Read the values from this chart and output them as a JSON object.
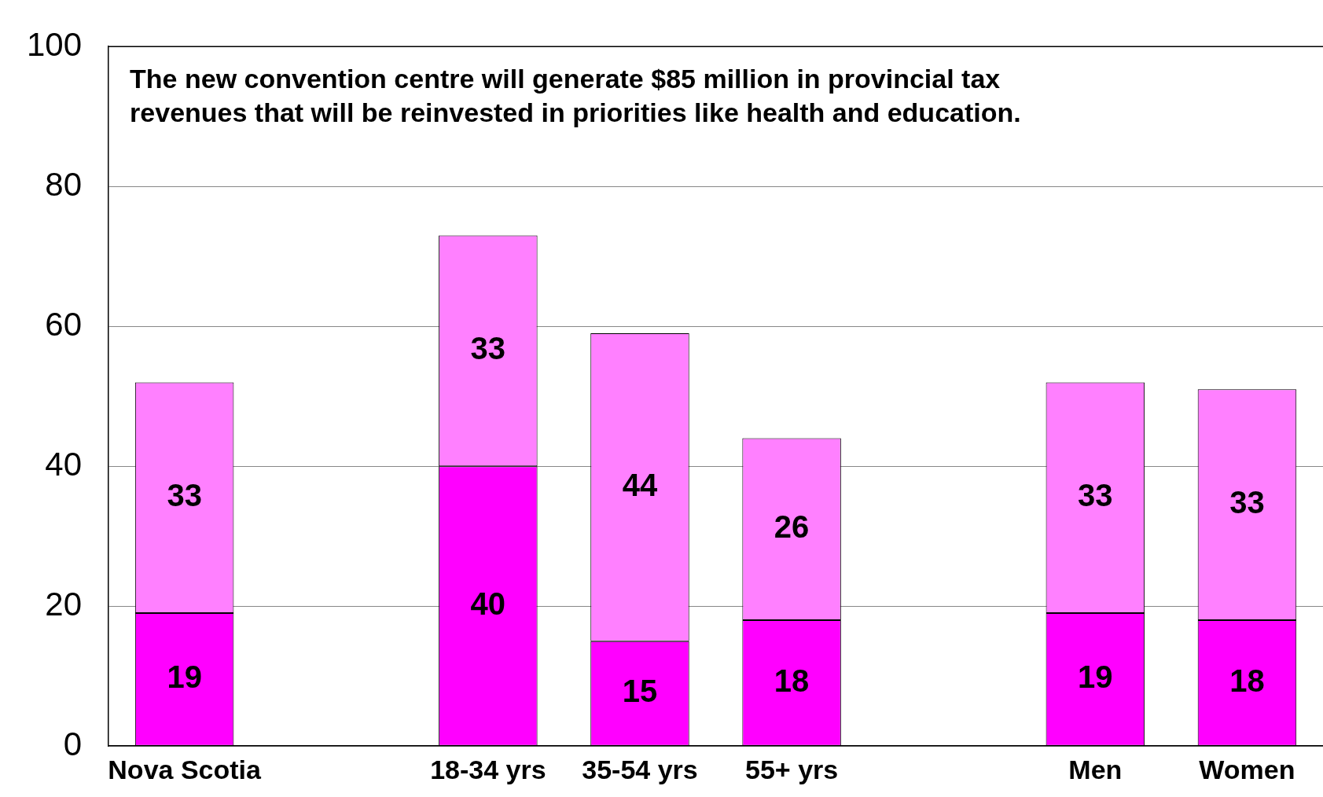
{
  "chart_data": {
    "type": "bar",
    "stacked": true,
    "categories": [
      "Nova Scotia",
      null,
      "18-34 yrs",
      "35-54 yrs",
      "55+ yrs",
      null,
      "Men",
      "Women"
    ],
    "series": [
      {
        "color": "#ff00ff",
        "values": [
          19,
          null,
          40,
          15,
          18,
          null,
          19,
          18
        ]
      },
      {
        "color": "#ff80ff",
        "values": [
          33,
          null,
          33,
          44,
          26,
          null,
          33,
          33
        ]
      }
    ],
    "ylim": [
      0,
      100
    ],
    "yticks": [
      0,
      20,
      40,
      60,
      80,
      100
    ],
    "grid": "y",
    "legend": false,
    "data_labels": true,
    "annotations": [
      "The new convention centre will generate $85 million in provincial tax revenues that will be reinvested in priorities like health and education."
    ]
  }
}
